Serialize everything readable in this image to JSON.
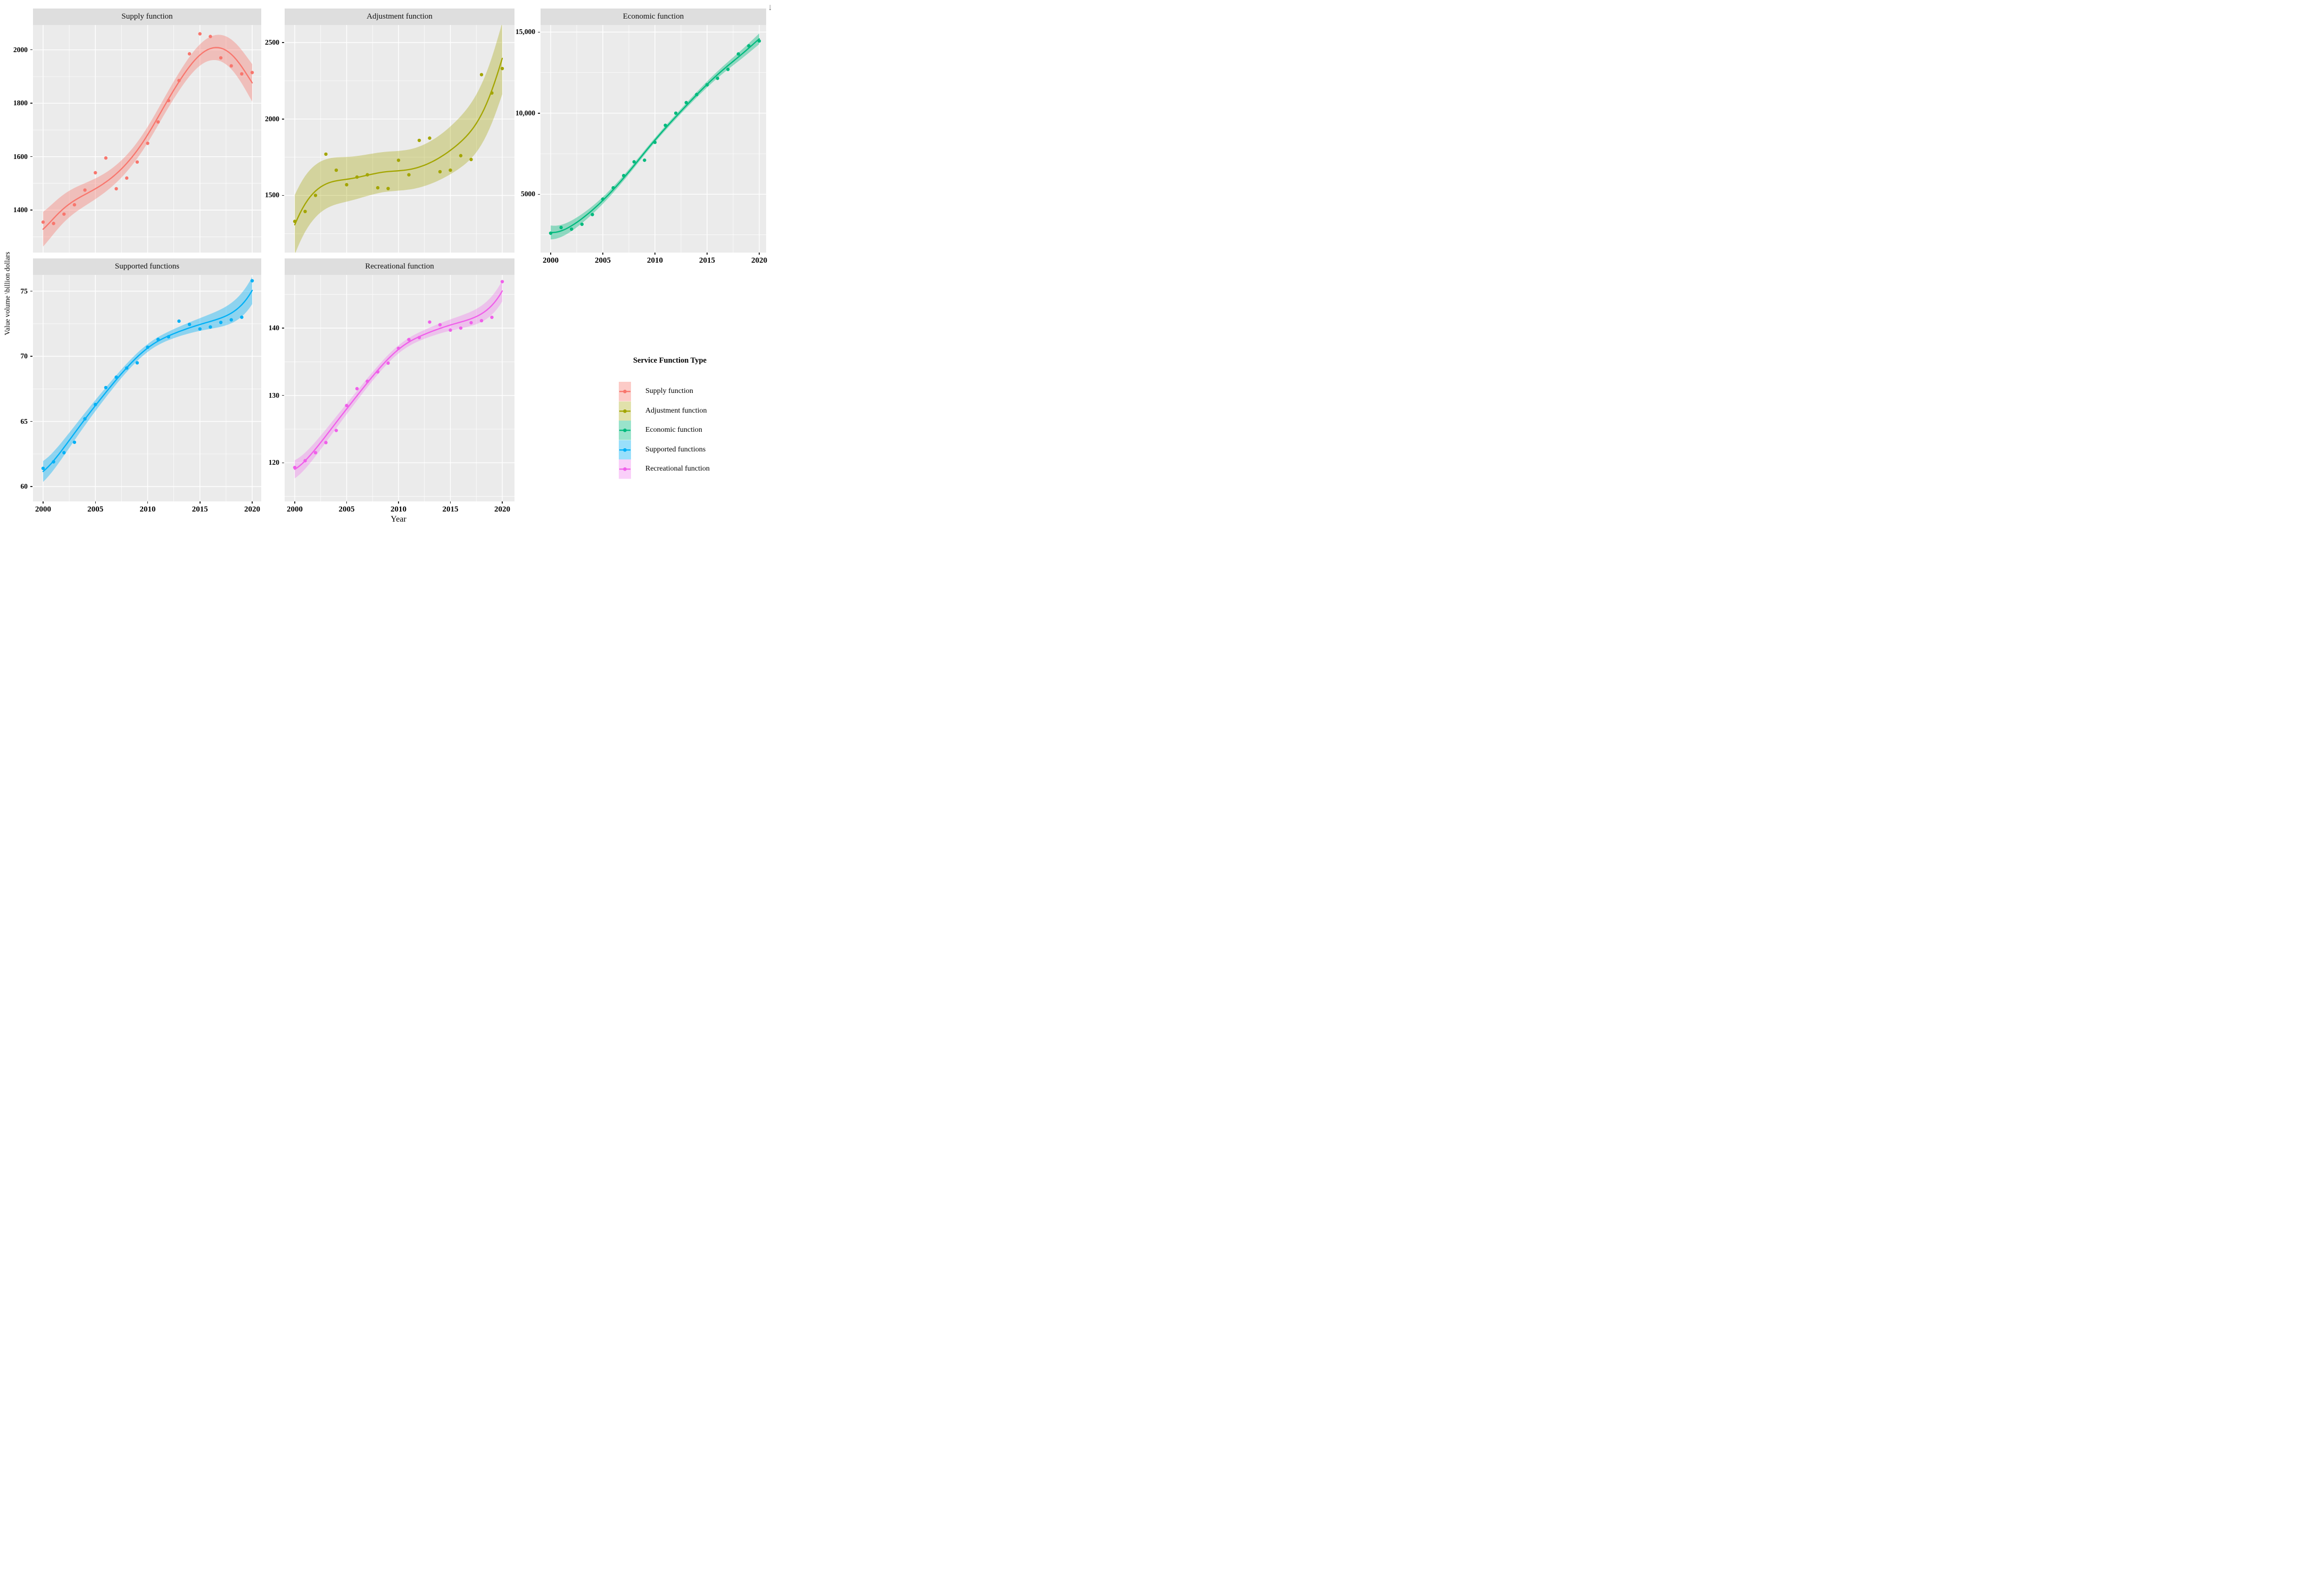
{
  "figure": {
    "y_axis_title": "Value volume \\billion dollars",
    "x_axis_title": "Year",
    "panel_bg": "#ebebeb",
    "strip_bg": "#dedede",
    "grid_color": "#ffffff"
  },
  "legend": {
    "title": "Service Function Type",
    "items": [
      {
        "label": "Supply function",
        "color": "#F8766D",
        "fill": "rgba(248,118,109,0.38)"
      },
      {
        "label": "Adjustment function",
        "color": "#A3A500",
        "fill": "rgba(163,165,0,0.33)"
      },
      {
        "label": "Economic function",
        "color": "#00BA7D",
        "fill": "rgba(0,186,125,0.40)"
      },
      {
        "label": "Supported functions",
        "color": "#00B0F6",
        "fill": "rgba(0,176,246,0.40)"
      },
      {
        "label": "Recreational function",
        "color": "#F05FEA",
        "fill": "rgba(240,95,234,0.30)"
      }
    ]
  },
  "chart_data": {
    "type": "scatter",
    "smoother": "loess with confidence band",
    "title": "",
    "xlabel": "Year",
    "ylabel": "Value volume \\billion dollars",
    "x": [
      2000,
      2001,
      2002,
      2003,
      2004,
      2005,
      2006,
      2007,
      2008,
      2009,
      2010,
      2011,
      2012,
      2013,
      2014,
      2015,
      2016,
      2017,
      2018,
      2019,
      2020
    ],
    "x_ticks": [
      {
        "v": 2000,
        "label": "2000"
      },
      {
        "v": 2005,
        "label": "2005"
      },
      {
        "v": 2010,
        "label": "2010"
      },
      {
        "v": 2015,
        "label": "2015"
      },
      {
        "v": 2020,
        "label": "2020"
      }
    ],
    "x_minor": [
      2002.5,
      2007.5,
      2012.5,
      2017.5
    ],
    "facets": [
      {
        "title": "Supply function",
        "color": "#F8766D",
        "fill": "rgba(248,118,109,0.38)",
        "values": [
          1355,
          1350,
          1385,
          1420,
          1475,
          1540,
          1595,
          1480,
          1520,
          1580,
          1650,
          1730,
          1810,
          1885,
          1985,
          2060,
          2050,
          1970,
          1940,
          1910,
          1915
        ],
        "ylim": [
          1241,
          2093
        ],
        "y_ticks": [
          {
            "v": 2000,
            "label": "2000"
          },
          {
            "v": 1800,
            "label": "1800"
          },
          {
            "v": 1600,
            "label": "1600"
          },
          {
            "v": 1400,
            "label": "1400"
          }
        ],
        "y_minor": [
          1900,
          1700,
          1500,
          1300
        ],
        "band": {
          "mid": 30,
          "start": 65,
          "end": 70
        },
        "show_x_axis": false
      },
      {
        "title": "Adjustment function",
        "color": "#A3A500",
        "fill": "rgba(163,165,0,0.33)",
        "values": [
          1330,
          1395,
          1500,
          1770,
          1665,
          1570,
          1620,
          1635,
          1550,
          1545,
          1730,
          1635,
          1860,
          1875,
          1655,
          1665,
          1760,
          1735,
          2290,
          2170,
          2330
        ],
        "ylim": [
          1126,
          2615
        ],
        "y_ticks": [
          {
            "v": 2500,
            "label": "2500"
          },
          {
            "v": 2000,
            "label": "2000"
          },
          {
            "v": 1500,
            "label": "1500"
          }
        ],
        "y_minor": [
          2250,
          1750,
          1250
        ],
        "band": {
          "mid": 130,
          "start": 195,
          "end": 235
        },
        "show_x_axis": false
      },
      {
        "title": "Economic function",
        "color": "#00BA7D",
        "fill": "rgba(0,186,125,0.40)",
        "values": [
          2600,
          2950,
          2850,
          3150,
          3750,
          4700,
          5400,
          6150,
          7000,
          7100,
          8200,
          9250,
          10000,
          10650,
          11150,
          11750,
          12150,
          12700,
          13650,
          14150,
          14450
        ],
        "ylim": [
          1405,
          15436
        ],
        "y_ticks": [
          {
            "v": 15000,
            "label": "15,000"
          },
          {
            "v": 10000,
            "label": "10,000"
          },
          {
            "v": 5000,
            "label": "5000"
          }
        ],
        "y_minor": [
          12500,
          7500,
          2500
        ],
        "band": {
          "mid": 140,
          "start": 430,
          "end": 330
        },
        "show_x_axis": true
      },
      {
        "title": "Supported functions",
        "color": "#00B0F6",
        "fill": "rgba(0,176,246,0.40)",
        "values": [
          61.4,
          61.9,
          62.6,
          63.4,
          65.2,
          66.3,
          67.6,
          68.4,
          69.1,
          69.5,
          70.7,
          71.3,
          71.5,
          72.7,
          72.45,
          72.1,
          72.25,
          72.6,
          72.8,
          73.0,
          75.8
        ],
        "ylim": [
          58.86,
          76.25
        ],
        "y_ticks": [
          {
            "v": 75,
            "label": "75"
          },
          {
            "v": 70,
            "label": "70"
          },
          {
            "v": 65,
            "label": "65"
          },
          {
            "v": 60,
            "label": "60"
          }
        ],
        "y_minor": [
          72.5,
          67.5,
          62.5
        ],
        "band": {
          "mid": 0.3,
          "start": 0.8,
          "end": 1.05
        },
        "show_x_axis": true
      },
      {
        "title": "Recreational function",
        "color": "#F05FEA",
        "fill": "rgba(240,95,234,0.30)",
        "values": [
          119.3,
          120.3,
          121.5,
          123.0,
          124.8,
          128.5,
          131.0,
          132.1,
          133.5,
          134.8,
          137.0,
          138.3,
          138.6,
          140.9,
          140.5,
          139.7,
          140.0,
          140.8,
          141.1,
          141.6,
          146.9
        ],
        "ylim": [
          114.26,
          147.9
        ],
        "y_ticks": [
          {
            "v": 140,
            "label": "140"
          },
          {
            "v": 130,
            "label": "130"
          },
          {
            "v": 120,
            "label": "120"
          }
        ],
        "y_minor": [
          145,
          135,
          125,
          115
        ],
        "band": {
          "mid": 0.6,
          "start": 1.35,
          "end": 1.55
        },
        "show_x_axis": true
      }
    ]
  }
}
